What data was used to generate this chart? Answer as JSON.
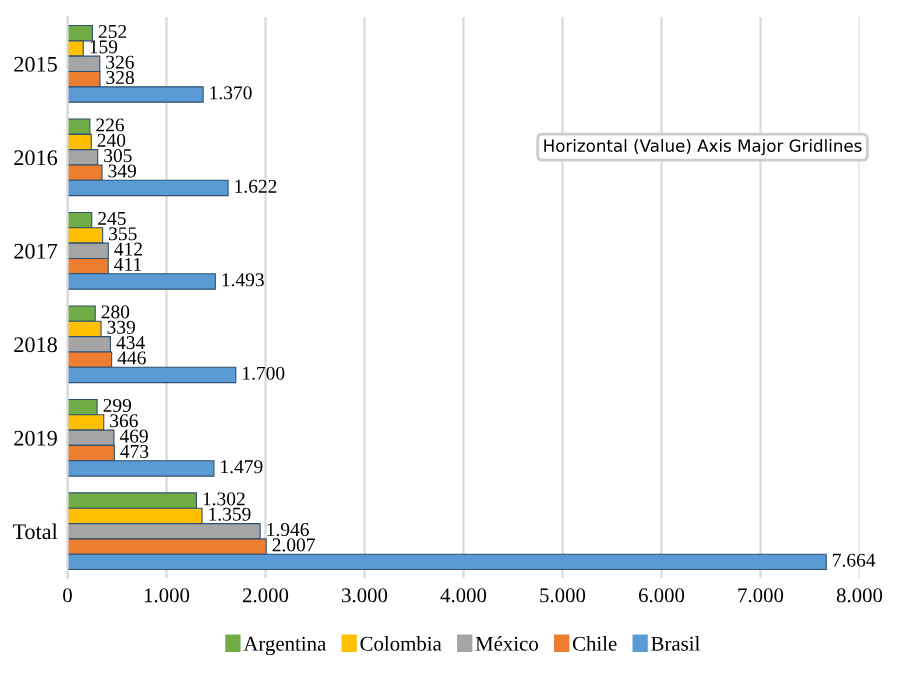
{
  "chart_data": {
    "type": "bar",
    "orientation": "horizontal",
    "categories": [
      "2015",
      "2016",
      "2017",
      "2018",
      "2019",
      "Total"
    ],
    "series": [
      {
        "name": "Argentina",
        "color": "#70ad47",
        "values": [
          252,
          226,
          245,
          280,
          299,
          1302
        ],
        "value_labels": [
          "252",
          "226",
          "245",
          "280",
          "299",
          "1.302"
        ]
      },
      {
        "name": "Colombia",
        "color": "#ffc000",
        "values": [
          159,
          240,
          355,
          339,
          366,
          1359
        ],
        "value_labels": [
          "159",
          "240",
          "355",
          "339",
          "366",
          "1.359"
        ]
      },
      {
        "name": "México",
        "color": "#a5a5a5",
        "values": [
          326,
          305,
          412,
          434,
          469,
          1946
        ],
        "value_labels": [
          "326",
          "305",
          "412",
          "434",
          "469",
          "1.946"
        ]
      },
      {
        "name": "Chile",
        "color": "#ed7d31",
        "values": [
          328,
          349,
          411,
          446,
          473,
          2007
        ],
        "value_labels": [
          "328",
          "349",
          "411",
          "446",
          "473",
          "2.007"
        ]
      },
      {
        "name": "Brasil",
        "color": "#5b9bd5",
        "values": [
          1370,
          1622,
          1493,
          1700,
          1479,
          7664
        ],
        "value_labels": [
          "1.370",
          "1.622",
          "1.493",
          "1.700",
          "1.479",
          "7.664"
        ]
      }
    ],
    "xlim": [
      0,
      8000
    ],
    "xticks": [
      0,
      {
        "value": 1000,
        "label": "1.000"
      },
      {
        "value": 2000,
        "label": "2.000"
      },
      {
        "value": 3000,
        "label": "3.000"
      },
      {
        "value": 4000,
        "label": "4.000"
      },
      {
        "value": 5000,
        "label": "5.000"
      },
      {
        "value": 6000,
        "label": "6.000"
      },
      {
        "value": 7000,
        "label": "7.000"
      },
      {
        "value": 8000,
        "label": "8.000"
      }
    ],
    "grid": "x",
    "legend": "bottom",
    "annotations": [
      "Horizontal (Value) Axis Major Gridlines"
    ]
  }
}
